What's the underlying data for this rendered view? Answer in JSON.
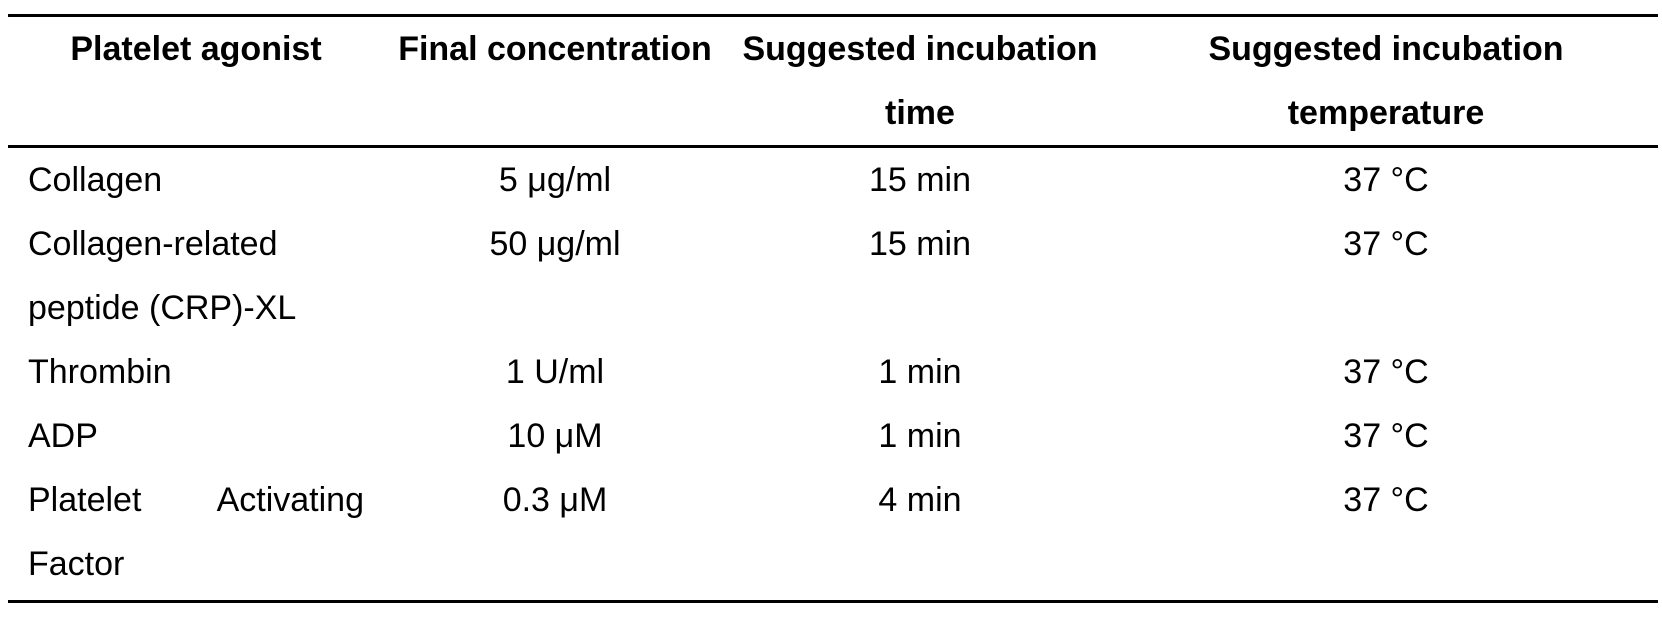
{
  "table": {
    "headers": [
      "Platelet agonist",
      "Final concentration",
      "Suggested incubation time",
      "Suggested incubation temperature"
    ],
    "rows": [
      {
        "agonist": "Collagen",
        "concentration": "5 μg/ml",
        "time": "15 min",
        "temperature": "37 °C"
      },
      {
        "agonist": "Collagen-related peptide (CRP)-XL",
        "concentration": "50 μg/ml",
        "time": "15 min",
        "temperature": "37 °C"
      },
      {
        "agonist": "Thrombin",
        "concentration": "1 U/ml",
        "time": "1 min",
        "temperature": "37 °C"
      },
      {
        "agonist": "ADP",
        "concentration": "10 μM",
        "time": "1 min",
        "temperature": "37 °C"
      },
      {
        "agonist": "Platelet Activating Factor",
        "concentration": "0.3 μM",
        "time": "4 min",
        "temperature": "37 °C"
      }
    ]
  }
}
